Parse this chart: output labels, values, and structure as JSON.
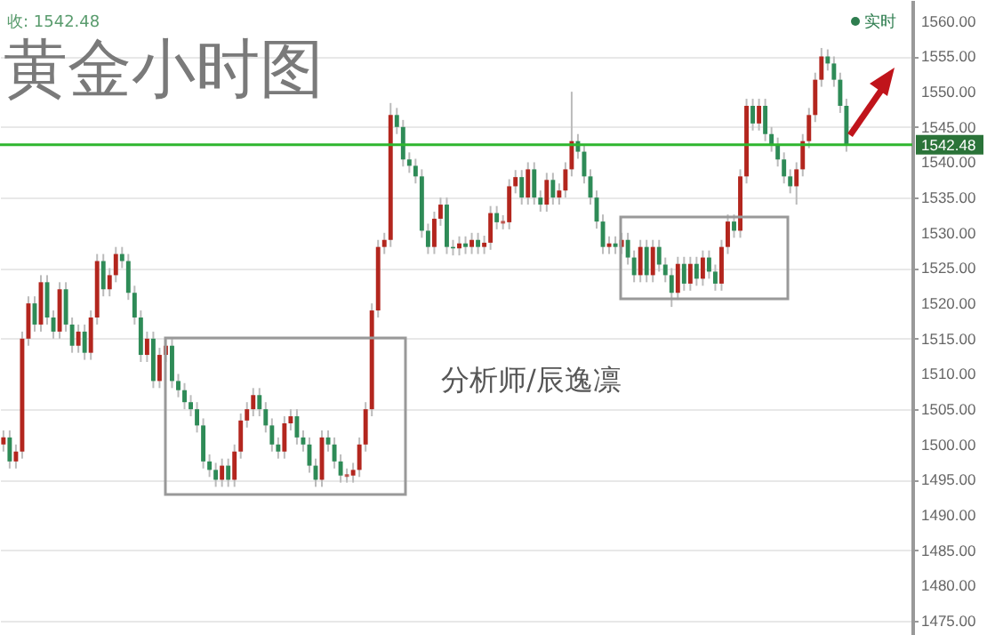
{
  "chart_data": {
    "type": "candlestick",
    "title": "黄金小时图",
    "annotations": [
      "收: 1542.48",
      "实时",
      "分析师/辰逸凛"
    ],
    "categories": [
      null,
      null,
      null,
      null,
      null,
      null,
      null,
      null,
      null,
      null,
      null,
      null,
      null,
      null,
      null,
      null,
      null,
      null,
      null,
      null,
      null,
      null,
      null,
      null,
      null,
      null,
      null,
      null,
      null,
      null,
      null,
      null,
      null,
      null,
      null,
      null,
      null,
      null,
      null,
      null,
      null,
      null,
      null,
      null,
      null,
      null,
      null,
      null,
      null,
      null,
      null,
      null,
      null,
      null,
      null,
      null,
      null,
      null,
      null,
      null,
      null,
      null,
      null,
      null,
      null,
      null,
      null,
      null,
      null,
      null,
      null,
      null,
      null,
      null,
      null,
      null,
      null,
      null,
      null,
      null,
      null,
      null,
      null,
      null,
      null,
      null,
      null,
      null,
      null,
      null,
      null,
      null,
      null,
      null,
      null,
      null,
      null,
      null,
      null,
      null,
      null,
      null,
      null,
      null,
      null,
      null,
      null,
      null,
      null,
      null,
      null,
      null,
      null,
      null,
      null,
      null,
      null,
      null,
      null,
      null,
      null,
      null,
      null,
      null,
      null,
      null,
      null,
      null,
      null,
      null,
      null,
      null,
      null,
      null,
      null,
      null,
      null,
      null,
      null,
      null,
      null,
      null,
      null,
      null,
      null,
      null
    ],
    "ohlc": [
      [
        1500,
        1502,
        1499,
        1501
      ],
      [
        1501,
        1502,
        1496.6,
        1497.6
      ],
      [
        1497.6,
        1500,
        1496.6,
        1499
      ],
      [
        1499,
        1516,
        1498,
        1515
      ],
      [
        1515,
        1521,
        1514,
        1520
      ],
      [
        1520,
        1521,
        1516,
        1517
      ],
      [
        1517,
        1524,
        1516,
        1523
      ],
      [
        1523,
        1524,
        1517,
        1518
      ],
      [
        1518,
        1519,
        1515,
        1516
      ],
      [
        1516,
        1523,
        1515,
        1522
      ],
      [
        1522,
        1523,
        1516,
        1517
      ],
      [
        1517,
        1518,
        1513,
        1514
      ],
      [
        1514,
        1517,
        1513,
        1516
      ],
      [
        1516,
        1517,
        1512,
        1513
      ],
      [
        1513,
        1519,
        1512,
        1518
      ],
      [
        1518,
        1527,
        1517,
        1526
      ],
      [
        1526,
        1527,
        1521,
        1522
      ],
      [
        1522,
        1525,
        1521,
        1524
      ],
      [
        1524,
        1528,
        1523,
        1527
      ],
      [
        1527,
        1528,
        1525,
        1526
      ],
      [
        1526,
        1527,
        1520.5,
        1521.5
      ],
      [
        1521.5,
        1522.5,
        1517,
        1518
      ],
      [
        1518,
        1519,
        1511.7,
        1512.7
      ],
      [
        1512.7,
        1516,
        1511.7,
        1515
      ],
      [
        1515,
        1516,
        1508,
        1509
      ],
      [
        1509,
        1513.7,
        1508,
        1512.7
      ],
      [
        1512.7,
        1515,
        1511.7,
        1514
      ],
      [
        1514,
        1515,
        1508,
        1509
      ],
      [
        1509,
        1510,
        1506.7,
        1507.7
      ],
      [
        1507.7,
        1508.7,
        1505,
        1506
      ],
      [
        1506,
        1507,
        1504,
        1505
      ],
      [
        1505,
        1506,
        1501.7,
        1502.7
      ],
      [
        1502.7,
        1503.7,
        1496.6,
        1497.6
      ],
      [
        1497.6,
        1498.6,
        1495.4,
        1496.4
      ],
      [
        1496.4,
        1497.4,
        1494,
        1495
      ],
      [
        1495,
        1498,
        1494,
        1497
      ],
      [
        1497,
        1498,
        1494,
        1495
      ],
      [
        1495,
        1500,
        1494,
        1499
      ],
      [
        1499,
        1504.4,
        1498,
        1503.4
      ],
      [
        1503.4,
        1506,
        1502.4,
        1505
      ],
      [
        1505,
        1508,
        1504,
        1507
      ],
      [
        1507,
        1508,
        1504,
        1505
      ],
      [
        1505,
        1506,
        1501.7,
        1502.7
      ],
      [
        1502.7,
        1503.7,
        1499,
        1500
      ],
      [
        1500,
        1501,
        1498,
        1499
      ],
      [
        1499,
        1504,
        1498,
        1503
      ],
      [
        1503,
        1505,
        1502,
        1504
      ],
      [
        1504,
        1505,
        1500,
        1501
      ],
      [
        1501,
        1502,
        1499,
        1500
      ],
      [
        1500,
        1501,
        1496,
        1497
      ],
      [
        1497,
        1498,
        1494,
        1495
      ],
      [
        1495,
        1502,
        1494,
        1501
      ],
      [
        1501,
        1502,
        1499,
        1500
      ],
      [
        1500,
        1501,
        1496.6,
        1497.6
      ],
      [
        1497.6,
        1498.6,
        1494.6,
        1495.6
      ],
      [
        1495.6,
        1496.6,
        1494.6,
        1495.6
      ],
      [
        1495.6,
        1497.4,
        1494.6,
        1496.4
      ],
      [
        1496.4,
        1501,
        1495.4,
        1500
      ],
      [
        1500,
        1506,
        1499,
        1505
      ],
      [
        1505,
        1520,
        1504,
        1519
      ],
      [
        1519,
        1529,
        1518,
        1528
      ],
      [
        1528,
        1530,
        1527,
        1529
      ],
      [
        1529,
        1548.4,
        1528,
        1546.7
      ],
      [
        1546.7,
        1547.7,
        1544,
        1545
      ],
      [
        1545,
        1546,
        1539.4,
        1540.4
      ],
      [
        1540.4,
        1541.4,
        1538.5,
        1539.5
      ],
      [
        1539.5,
        1540.5,
        1537,
        1538
      ],
      [
        1538,
        1539,
        1529.3,
        1530.3
      ],
      [
        1530.3,
        1531.3,
        1527,
        1528
      ],
      [
        1528,
        1533,
        1527,
        1532
      ],
      [
        1532,
        1535,
        1531,
        1534
      ],
      [
        1534,
        1535,
        1527,
        1528
      ],
      [
        1528,
        1529,
        1526.8,
        1527.8
      ],
      [
        1527.8,
        1529.5,
        1526.8,
        1528.5
      ],
      [
        1528.5,
        1529.5,
        1527,
        1528
      ],
      [
        1528,
        1530,
        1527,
        1529
      ],
      [
        1529,
        1530,
        1527,
        1528
      ],
      [
        1528,
        1529.6,
        1527,
        1528.6
      ],
      [
        1528.6,
        1533.8,
        1527.6,
        1532.8
      ],
      [
        1532.8,
        1533.8,
        1530.5,
        1531.5
      ],
      [
        1531.5,
        1532.5,
        1530.5,
        1531.5
      ],
      [
        1531.5,
        1537.6,
        1530.5,
        1536.6
      ],
      [
        1536.6,
        1538.9,
        1535.6,
        1537.9
      ],
      [
        1537.9,
        1538.9,
        1534,
        1535
      ],
      [
        1535,
        1540,
        1534,
        1539
      ],
      [
        1539,
        1540,
        1534,
        1535
      ],
      [
        1535,
        1536,
        1533,
        1534
      ],
      [
        1534,
        1538.5,
        1533,
        1537.5
      ],
      [
        1537.5,
        1538.5,
        1534,
        1535
      ],
      [
        1535,
        1537,
        1534,
        1536
      ],
      [
        1536,
        1540,
        1535,
        1539
      ],
      [
        1539,
        1550,
        1538,
        1543
      ],
      [
        1543,
        1544,
        1540.5,
        1541.5
      ],
      [
        1541.5,
        1542.5,
        1537,
        1538
      ],
      [
        1538,
        1539,
        1534,
        1535
      ],
      [
        1535,
        1536,
        1530.6,
        1531.6
      ],
      [
        1531.6,
        1532.6,
        1527,
        1528
      ],
      [
        1528,
        1529.5,
        1527,
        1528.5
      ],
      [
        1528.5,
        1529.5,
        1527,
        1528
      ],
      [
        1528,
        1530,
        1527,
        1529
      ],
      [
        1529,
        1530,
        1525.5,
        1526.5
      ],
      [
        1526.5,
        1527.5,
        1523,
        1524
      ],
      [
        1524,
        1529,
        1523,
        1528
      ],
      [
        1528,
        1529,
        1523,
        1524
      ],
      [
        1524,
        1529,
        1523,
        1528
      ],
      [
        1528,
        1529,
        1524.5,
        1525.5
      ],
      [
        1525.5,
        1526.5,
        1523,
        1524
      ],
      [
        1524,
        1525,
        1519.5,
        1521.5
      ],
      [
        1521.5,
        1526.6,
        1520.5,
        1525.6
      ],
      [
        1525.6,
        1526.6,
        1521.8,
        1522.8
      ],
      [
        1522.8,
        1526.6,
        1521.8,
        1525.6
      ],
      [
        1525.6,
        1526.6,
        1522.5,
        1523.5
      ],
      [
        1523.5,
        1527.5,
        1522.5,
        1526.5
      ],
      [
        1526.5,
        1527.5,
        1523.5,
        1524.5
      ],
      [
        1524.5,
        1525.5,
        1521.8,
        1522.8
      ],
      [
        1522.8,
        1529,
        1521.8,
        1528
      ],
      [
        1528,
        1532.6,
        1527,
        1531.6
      ],
      [
        1531.6,
        1532.6,
        1529.3,
        1530.3
      ],
      [
        1530.3,
        1539,
        1529.3,
        1538
      ],
      [
        1538,
        1549,
        1537,
        1548
      ],
      [
        1548,
        1549,
        1544.5,
        1545.5
      ],
      [
        1545.5,
        1549,
        1544.5,
        1548
      ],
      [
        1548,
        1549,
        1543,
        1544
      ],
      [
        1544,
        1545,
        1541.5,
        1542.5
      ],
      [
        1542.5,
        1543.5,
        1539.4,
        1540.4
      ],
      [
        1540.4,
        1541.4,
        1537,
        1538
      ],
      [
        1538,
        1539,
        1535.6,
        1536.6
      ],
      [
        1536.6,
        1540,
        1534,
        1539
      ],
      [
        1539,
        1544,
        1538,
        1543
      ],
      [
        1543,
        1547.7,
        1542,
        1546.7
      ],
      [
        1546.7,
        1552.7,
        1545.7,
        1551.7
      ],
      [
        1551.7,
        1556.2,
        1550.7,
        1555
      ],
      [
        1555,
        1556,
        1553,
        1554
      ],
      [
        1554,
        1555,
        1550.7,
        1551.7
      ],
      [
        1551.7,
        1552.7,
        1547,
        1548
      ],
      [
        1548,
        1549,
        1541.5,
        1542.48
      ],
      null,
      null,
      null,
      null,
      null,
      null,
      null,
      null,
      null,
      null
    ],
    "ylim": [
      1473,
      1563
    ],
    "yticks": [
      {
        "value": 1475,
        "label": "1475.00"
      },
      {
        "value": 1480,
        "label": "1480.00"
      },
      {
        "value": 1485,
        "label": "1485.00"
      },
      {
        "value": 1490,
        "label": "1490.00"
      },
      {
        "value": 1495,
        "label": "1495.00"
      },
      {
        "value": 1500,
        "label": "1500.00"
      },
      {
        "value": 1505,
        "label": "1505.00"
      },
      {
        "value": 1510,
        "label": "1510.00"
      },
      {
        "value": 1515,
        "label": "1515.00"
      },
      {
        "value": 1520,
        "label": "1520.00"
      },
      {
        "value": 1525,
        "label": "1525.00"
      },
      {
        "value": 1530,
        "label": "1530.00"
      },
      {
        "value": 1535,
        "label": "1535.00"
      },
      {
        "value": 1540,
        "label": "1540.00"
      },
      {
        "value": 1545,
        "label": "1545.00"
      },
      {
        "value": 1550,
        "label": "1550.00"
      },
      {
        "value": 1555,
        "label": "1555.00"
      },
      {
        "value": 1560,
        "label": "1560.00"
      }
    ],
    "grid": "y",
    "ref_lines": [
      {
        "axis": "y",
        "value": 1542.48,
        "label": "1542.48",
        "color": "#2fb62f"
      }
    ]
  }
}
